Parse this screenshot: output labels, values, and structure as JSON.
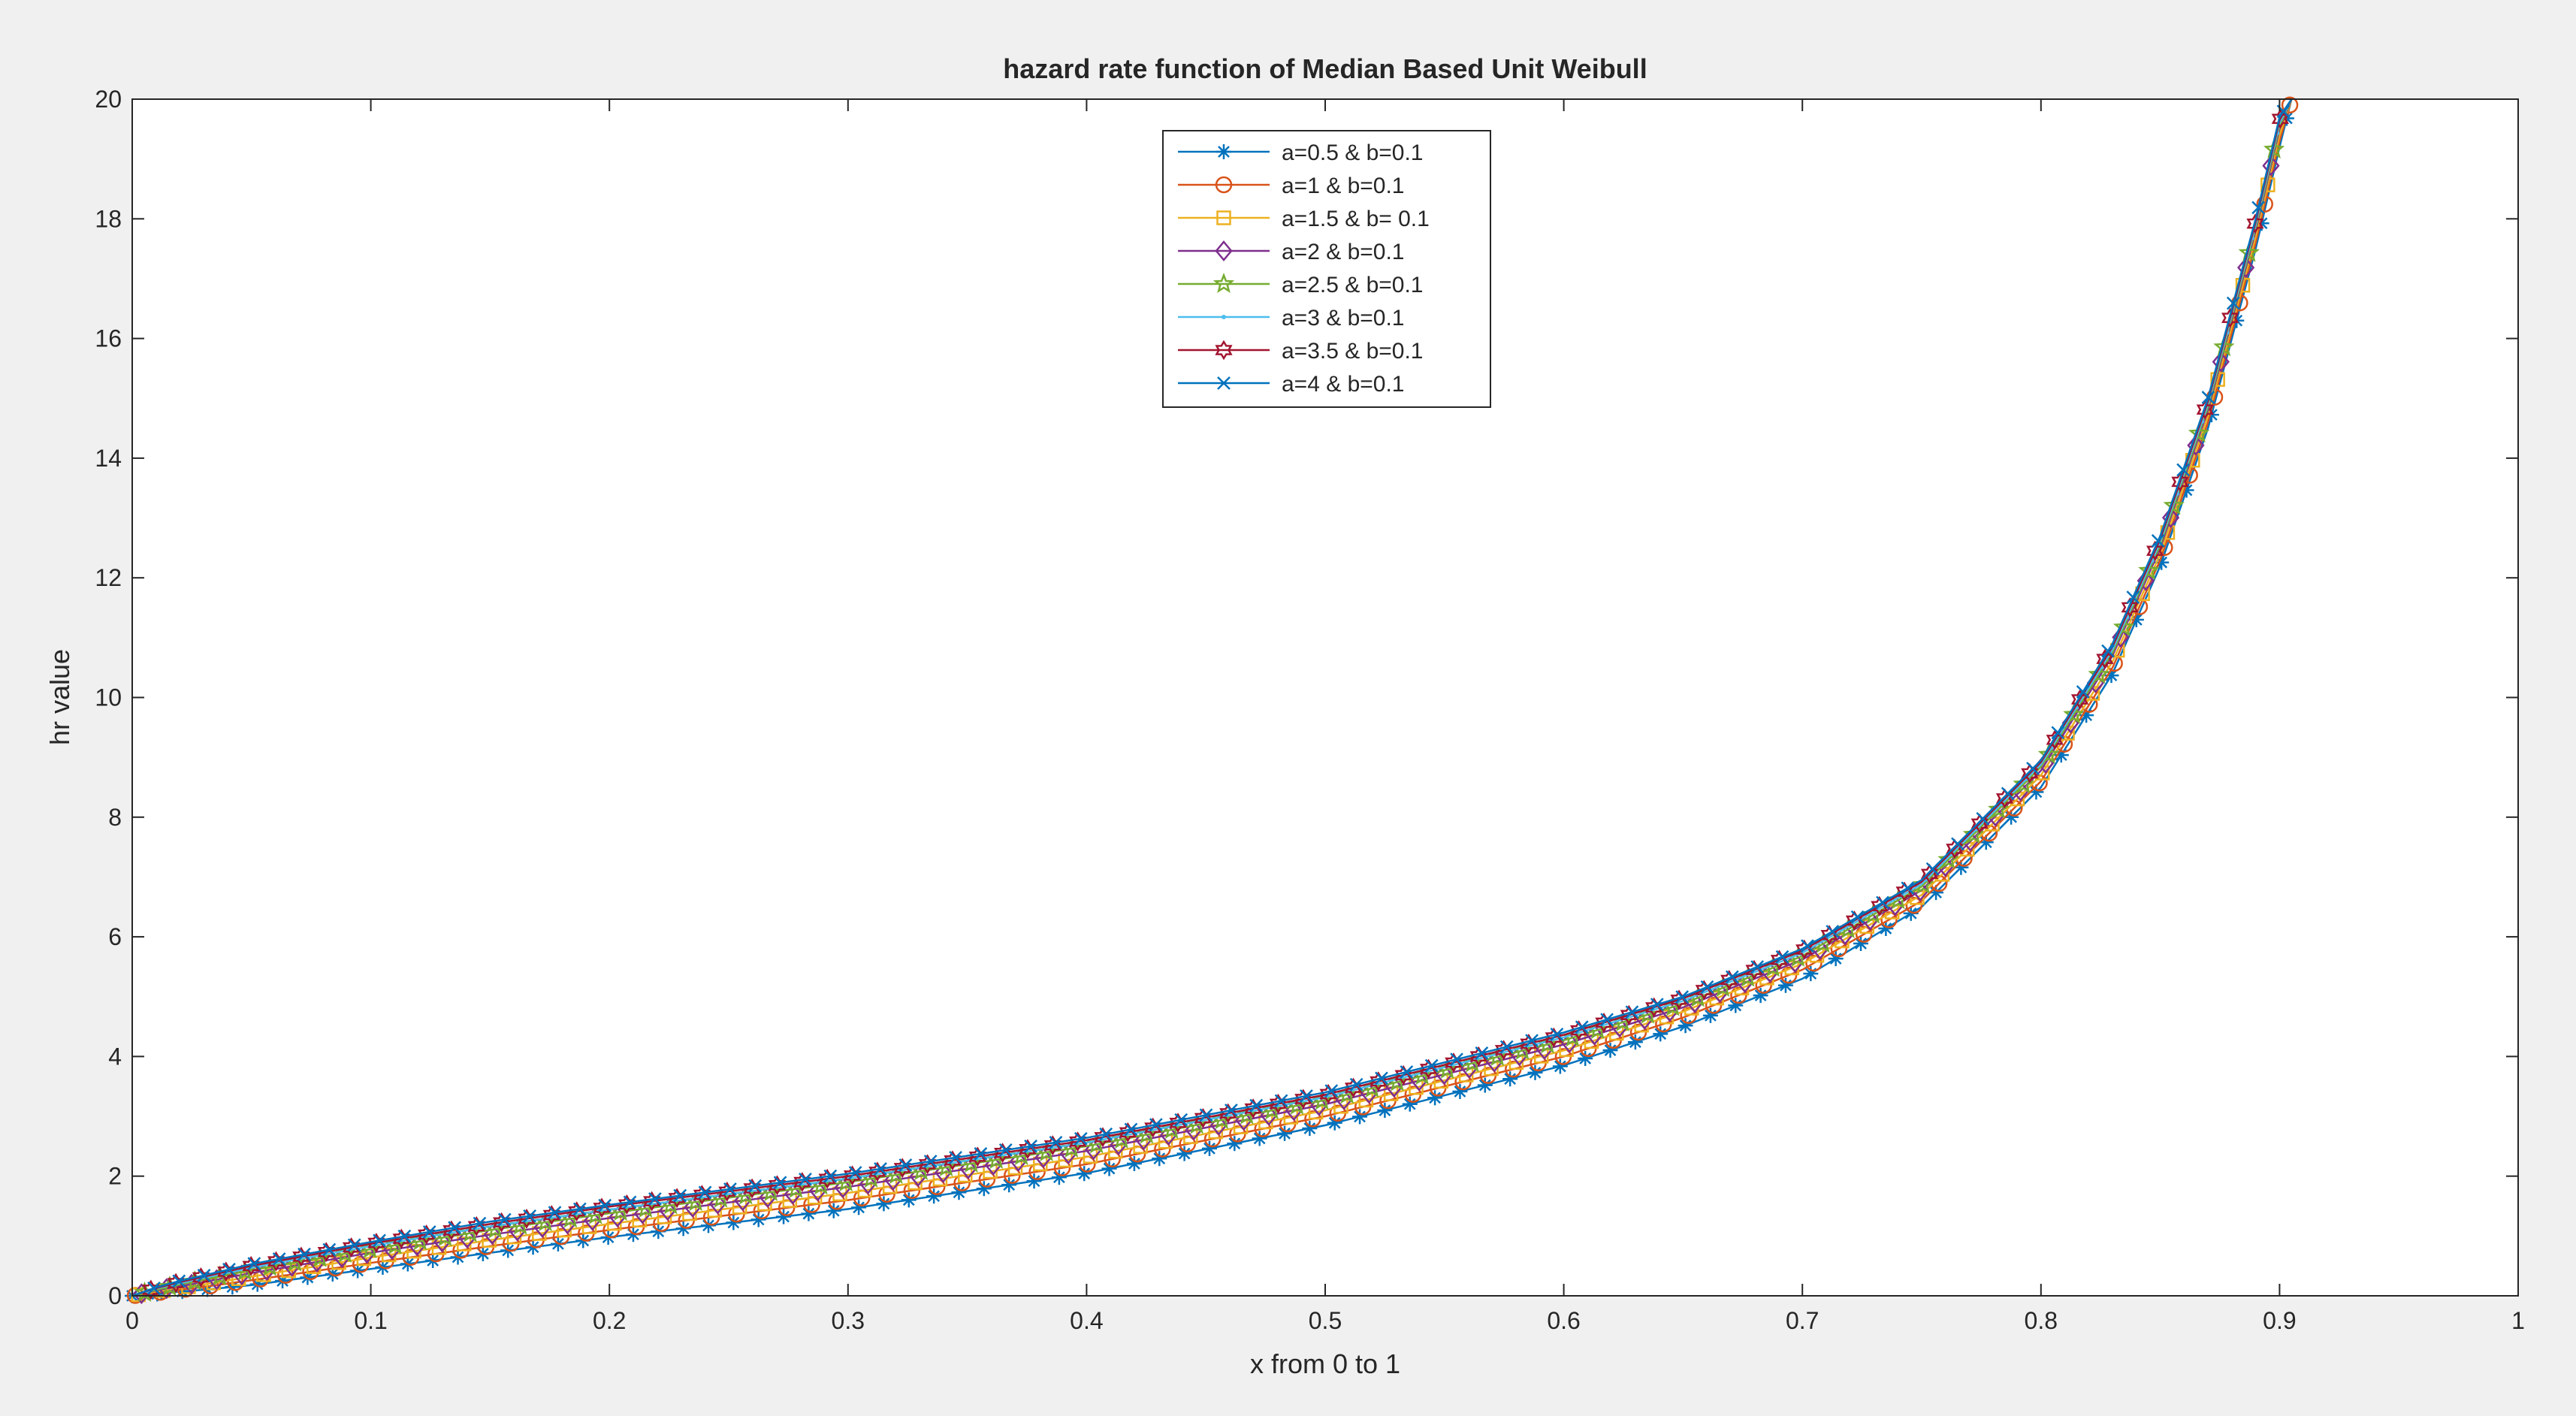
{
  "window": {
    "background": "#f0f0f0"
  },
  "chart_data": {
    "type": "line",
    "title": "hazard rate function of Median Based Unit Weibull",
    "xlabel": "x from 0 to 1",
    "ylabel": "hr value",
    "xlim": [
      0,
      1
    ],
    "ylim": [
      0,
      20
    ],
    "xticks": [
      0,
      0.1,
      0.2,
      0.3,
      0.4,
      0.5,
      0.6,
      0.7,
      0.8,
      0.9,
      1
    ],
    "xtick_labels": [
      "0",
      "0.1",
      "0.2",
      "0.3",
      "0.4",
      "0.5",
      "0.6",
      "0.7",
      "0.8",
      "0.9",
      "1"
    ],
    "yticks": [
      0,
      2,
      4,
      6,
      8,
      10,
      12,
      14,
      16,
      18,
      20
    ],
    "ytick_labels": [
      "0",
      "2",
      "4",
      "6",
      "8",
      "10",
      "12",
      "14",
      "16",
      "18",
      "20"
    ],
    "grid": false,
    "legend_position": "top-center",
    "x": [
      0,
      0.01,
      0.02,
      0.03,
      0.05,
      0.1,
      0.15,
      0.2,
      0.3,
      0.4,
      0.5,
      0.6,
      0.65,
      0.7,
      0.75,
      0.8,
      0.83,
      0.85,
      0.87,
      0.89,
      0.9,
      0.905
    ],
    "series": [
      {
        "name": "a=0.5   &  b=0.1",
        "color": "#0072bd",
        "marker": "asterisk",
        "values": [
          0,
          0.03,
          0.07,
          0.1,
          0.18,
          0.45,
          0.72,
          0.98,
          1.45,
          2.05,
          2.85,
          3.85,
          4.5,
          5.3,
          6.5,
          8.5,
          10.4,
          12.2,
          14.5,
          17.5,
          19.2,
          20
        ]
      },
      {
        "name": "a=1  &  b=0.1",
        "color": "#d95319",
        "marker": "circle",
        "values": [
          0,
          0.05,
          0.1,
          0.15,
          0.26,
          0.55,
          0.83,
          1.1,
          1.6,
          2.2,
          3.0,
          4.0,
          4.65,
          5.45,
          6.6,
          8.6,
          10.5,
          12.3,
          14.6,
          17.6,
          19.3,
          20
        ]
      },
      {
        "name": "a=1.5  &   b= 0.1",
        "color": "#edb120",
        "marker": "square",
        "values": [
          0,
          0.07,
          0.13,
          0.19,
          0.32,
          0.64,
          0.93,
          1.2,
          1.72,
          2.32,
          3.1,
          4.1,
          4.75,
          5.55,
          6.7,
          8.7,
          10.6,
          12.4,
          14.7,
          17.7,
          19.4,
          20
        ]
      },
      {
        "name": "a=2  &  b=0.1",
        "color": "#7e2f8e",
        "marker": "diamond",
        "values": [
          0,
          0.09,
          0.16,
          0.23,
          0.38,
          0.72,
          1.02,
          1.3,
          1.82,
          2.42,
          3.2,
          4.2,
          4.82,
          5.62,
          6.78,
          8.78,
          10.7,
          12.5,
          14.8,
          17.8,
          19.5,
          20
        ]
      },
      {
        "name": "a=2.5   &  b=0.1",
        "color": "#77ac30",
        "marker": "star",
        "values": [
          0,
          0.1,
          0.19,
          0.27,
          0.43,
          0.78,
          1.1,
          1.38,
          1.9,
          2.5,
          3.27,
          4.27,
          4.88,
          5.68,
          6.84,
          8.84,
          10.75,
          12.55,
          14.85,
          17.85,
          19.55,
          20
        ]
      },
      {
        "name": "a=3   &  b=0.1",
        "color": "#4dbeee",
        "marker": "point",
        "values": [
          0,
          0.12,
          0.21,
          0.3,
          0.47,
          0.83,
          1.16,
          1.44,
          1.96,
          2.56,
          3.32,
          4.32,
          4.93,
          5.73,
          6.88,
          8.88,
          10.8,
          12.6,
          14.9,
          17.9,
          19.6,
          20
        ]
      },
      {
        "name": "a=3.5   &   b=0.1",
        "color": "#a2142f",
        "marker": "hexagram",
        "values": [
          0,
          0.13,
          0.23,
          0.32,
          0.5,
          0.87,
          1.2,
          1.49,
          2.0,
          2.6,
          3.36,
          4.36,
          4.97,
          5.77,
          6.92,
          8.92,
          10.85,
          12.65,
          14.95,
          17.95,
          19.65,
          20
        ]
      },
      {
        "name": "a=4    &   b=0.1",
        "color": "#0072bd",
        "marker": "x",
        "values": [
          0,
          0.14,
          0.25,
          0.34,
          0.53,
          0.9,
          1.24,
          1.52,
          2.04,
          2.64,
          3.4,
          4.4,
          5.0,
          5.8,
          6.95,
          8.95,
          10.9,
          12.7,
          15.0,
          18.0,
          19.7,
          20
        ]
      }
    ]
  }
}
